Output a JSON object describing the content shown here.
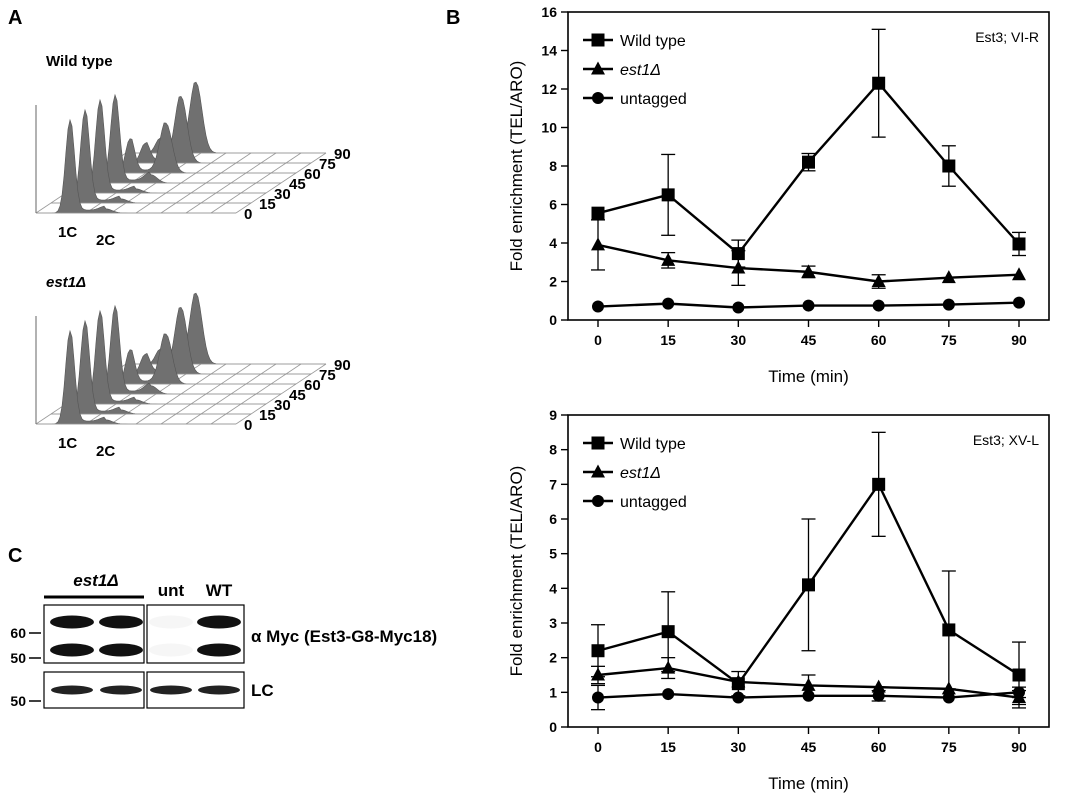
{
  "panels": {
    "a_label": "A",
    "b_label": "B",
    "c_label": "C"
  },
  "facs": [
    {
      "title": "Wild type",
      "title_italic": false,
      "timepoints": [
        "90",
        "75",
        "60",
        "45",
        "30",
        "15",
        "0"
      ],
      "peak_labels": [
        "1C",
        "2C"
      ],
      "g1_fraction": [
        0.15,
        0.2,
        0.35,
        0.9,
        0.95,
        0.95,
        0.95
      ],
      "g2_fraction": [
        0.85,
        0.8,
        0.6,
        0.1,
        0.05,
        0.05,
        0.05
      ]
    },
    {
      "title": "est1Δ",
      "title_italic": true,
      "timepoints": [
        "90",
        "75",
        "60",
        "45",
        "30",
        "15",
        "0"
      ],
      "peak_labels": [
        "1C",
        "2C"
      ],
      "g1_fraction": [
        0.15,
        0.2,
        0.35,
        0.9,
        0.95,
        0.95,
        0.95
      ],
      "g2_fraction": [
        0.85,
        0.8,
        0.6,
        0.1,
        0.05,
        0.05,
        0.05
      ]
    }
  ],
  "blot": {
    "group_label": "est1Δ",
    "lane_labels": [
      "unt",
      "WT"
    ],
    "top_label": "α Myc (Est3-G8-Myc18)",
    "bottom_label": "LC",
    "mw_top": [
      "60",
      "50"
    ],
    "mw_bottom": [
      "50"
    ]
  },
  "chart_data": [
    {
      "type": "line",
      "title": "",
      "corner_label": "Est3; VI-R",
      "xlabel": "Time (min)",
      "ylabel": "Fold enrichment (TEL/ARO)",
      "x": [
        0,
        15,
        30,
        45,
        60,
        75,
        90
      ],
      "xticks": [
        "0",
        "15",
        "30",
        "45",
        "60",
        "75",
        "90"
      ],
      "ylim": [
        0,
        16
      ],
      "yticks": [
        "0",
        "2",
        "4",
        "6",
        "8",
        "10",
        "12",
        "14",
        "16"
      ],
      "legend_position": "top-left",
      "series": [
        {
          "name": "Wild type",
          "italic": false,
          "marker": "square",
          "values": [
            5.55,
            6.5,
            3.45,
            8.2,
            12.3,
            8.0,
            3.95
          ],
          "err": [
            0.0,
            2.1,
            0.7,
            0.45,
            2.8,
            1.05,
            0.6
          ]
        },
        {
          "name": "est1Δ",
          "italic": true,
          "marker": "triangle",
          "values": [
            3.9,
            3.1,
            2.7,
            2.5,
            2.0,
            2.2,
            2.35
          ],
          "err": [
            1.3,
            0.4,
            0.9,
            0.3,
            0.35,
            0.0,
            0.0
          ]
        },
        {
          "name": "untagged",
          "italic": false,
          "marker": "circle",
          "values": [
            0.7,
            0.85,
            0.65,
            0.75,
            0.75,
            0.8,
            0.9
          ],
          "err": [
            0,
            0,
            0,
            0,
            0,
            0,
            0
          ]
        }
      ]
    },
    {
      "type": "line",
      "title": "",
      "corner_label": "Est3; XV-L",
      "xlabel": "Time (min)",
      "ylabel": "Fold enrichment (TEL/ARO)",
      "x": [
        0,
        15,
        30,
        45,
        60,
        75,
        90
      ],
      "xticks": [
        "0",
        "15",
        "30",
        "45",
        "60",
        "75",
        "90"
      ],
      "ylim": [
        0,
        9
      ],
      "yticks": [
        "0",
        "1",
        "2",
        "3",
        "4",
        "5",
        "6",
        "7",
        "8",
        "9"
      ],
      "legend_position": "top-left",
      "series": [
        {
          "name": "Wild type",
          "italic": false,
          "marker": "square",
          "values": [
            2.2,
            2.75,
            1.25,
            4.1,
            7.0,
            2.8,
            1.5
          ],
          "err": [
            0.75,
            1.15,
            0.35,
            1.9,
            1.5,
            1.7,
            0.95
          ]
        },
        {
          "name": "est1Δ",
          "italic": true,
          "marker": "triangle",
          "values": [
            1.5,
            1.7,
            1.3,
            1.2,
            1.15,
            1.1,
            0.85
          ],
          "err": [
            0.25,
            0.3,
            0.0,
            0.3,
            0.0,
            0.0,
            0.2
          ]
        },
        {
          "name": "untagged",
          "italic": false,
          "marker": "circle",
          "values": [
            0.85,
            0.95,
            0.85,
            0.9,
            0.9,
            0.85,
            1.0
          ],
          "err": [
            0.35,
            0.0,
            0.0,
            0.0,
            0.15,
            0.0,
            0.15
          ]
        }
      ]
    }
  ]
}
